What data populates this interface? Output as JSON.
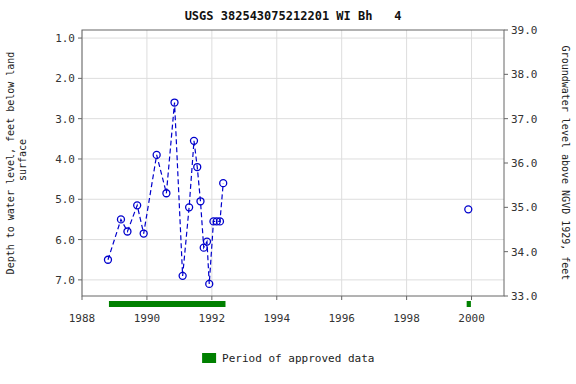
{
  "chart_data": {
    "type": "line",
    "title": "USGS 382543075212201 WI Bh   4",
    "ylabel": "Depth to water level, feet below land\n surface",
    "y2label": "Groundwater level above NGVD 1929, feet",
    "xlim": [
      1988,
      2001
    ],
    "xticks": [
      1988,
      1990,
      1992,
      1994,
      1996,
      1998,
      2000
    ],
    "ylim": [
      7.4,
      0.8
    ],
    "yticks": [
      {
        "value": 1.0,
        "label": "1.0"
      },
      {
        "value": 2.0,
        "label": "2.0"
      },
      {
        "value": 3.0,
        "label": "3.0"
      },
      {
        "value": 4.0,
        "label": "4.0"
      },
      {
        "value": 5.0,
        "label": "5.0"
      },
      {
        "value": 6.0,
        "label": "6.0"
      },
      {
        "value": 7.0,
        "label": "7.0"
      }
    ],
    "y2lim": [
      33.0,
      39.0
    ],
    "y2ticks": [
      {
        "value": 33.0,
        "label": "33.0"
      },
      {
        "value": 34.0,
        "label": "34.0"
      },
      {
        "value": 35.0,
        "label": "35.0"
      },
      {
        "value": 36.0,
        "label": "36.0"
      },
      {
        "value": 37.0,
        "label": "37.0"
      },
      {
        "value": 38.0,
        "label": "38.0"
      },
      {
        "value": 39.0,
        "label": "39.0"
      }
    ],
    "grid": true,
    "legend": "bottom",
    "series": [
      {
        "x": [
          1988.8,
          1989.2,
          1989.4,
          1989.7,
          1989.9,
          1990.3,
          1990.6,
          1990.85,
          1991.1,
          1991.3,
          1991.45,
          1991.55,
          1991.65,
          1991.75,
          1991.85,
          1991.92,
          1992.05,
          1992.15,
          1992.25,
          1992.35
        ],
        "values": [
          6.5,
          5.5,
          5.8,
          5.15,
          5.85,
          3.9,
          4.85,
          2.6,
          6.9,
          5.2,
          3.55,
          4.2,
          5.05,
          6.2,
          6.05,
          7.1,
          5.55,
          5.55,
          5.55,
          4.6
        ],
        "color": "#0000CC",
        "marker": "circle",
        "line_style": "dashed"
      },
      {
        "x": [
          1999.9
        ],
        "values": [
          5.25
        ],
        "color": "#0000CC",
        "marker": "circle",
        "line_style": "dashed"
      }
    ],
    "approved_periods": {
      "name": "Period of approved data",
      "color": "#008000",
      "ranges": [
        [
          1988.83,
          1992.42
        ],
        [
          1999.85,
          1999.98
        ]
      ]
    }
  }
}
